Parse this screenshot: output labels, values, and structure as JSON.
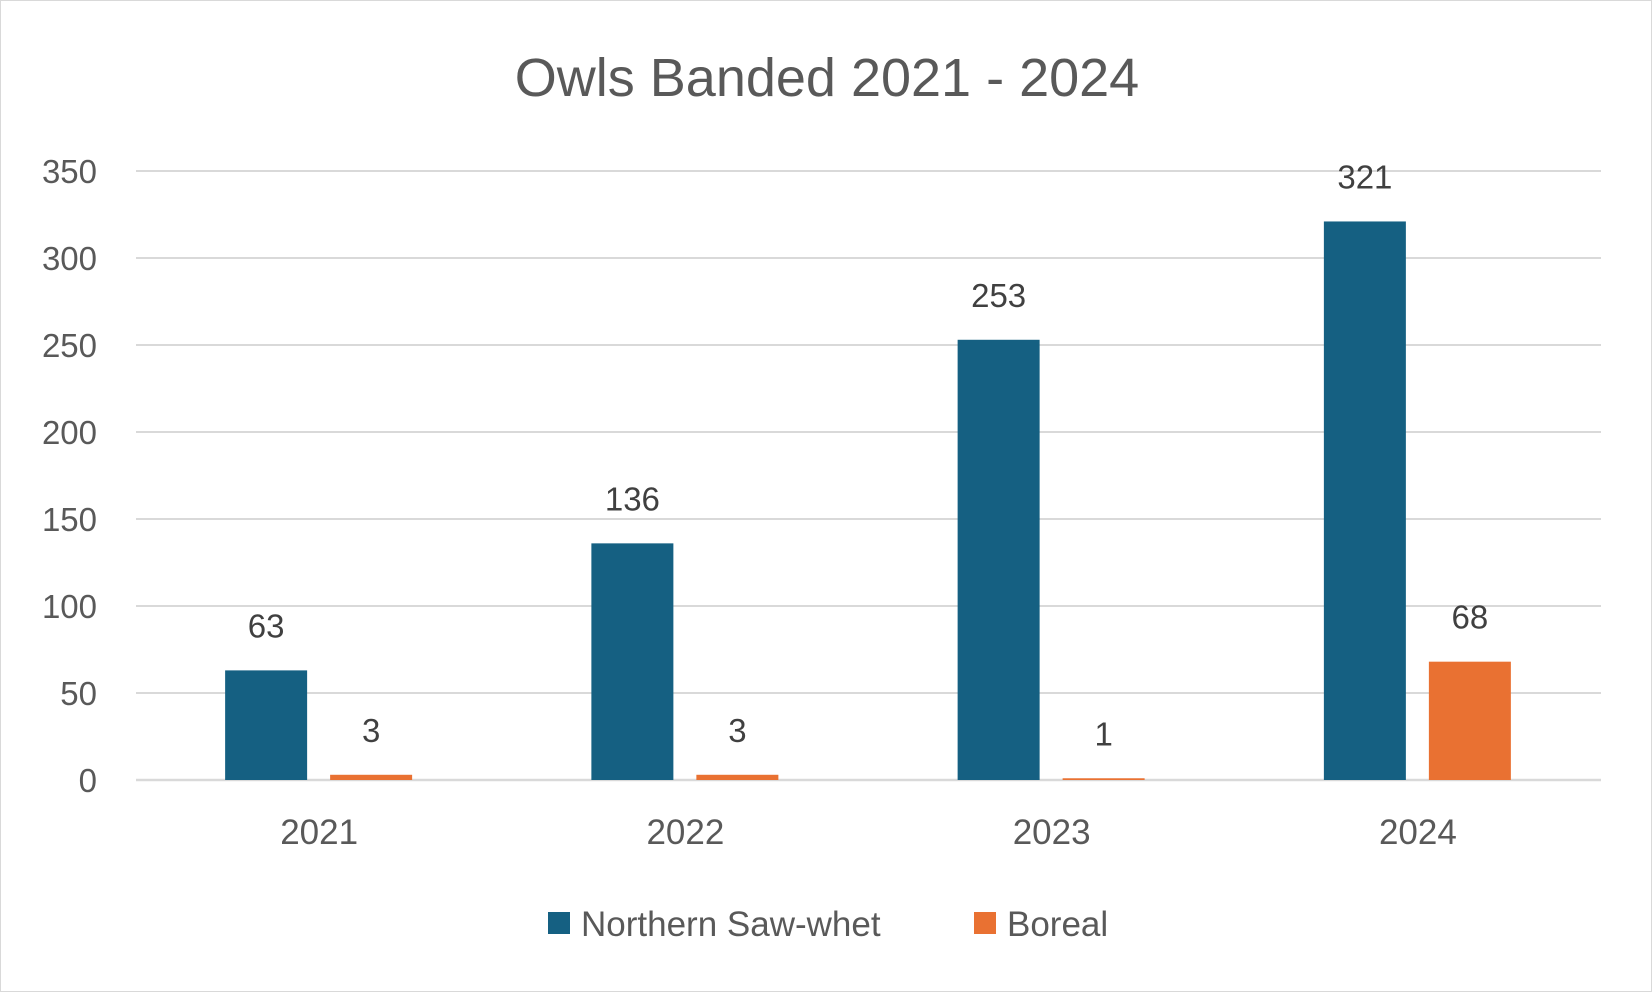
{
  "chart_data": {
    "type": "bar",
    "title": "Owls Banded 2021 - 2024",
    "xlabel": "",
    "ylabel": "",
    "categories": [
      "2021",
      "2022",
      "2023",
      "2024"
    ],
    "ylim": [
      0,
      350
    ],
    "y_ticks": [
      0,
      50,
      100,
      150,
      200,
      250,
      300,
      350
    ],
    "grid": true,
    "legend_position": "bottom",
    "data_labels": true,
    "series": [
      {
        "name": "Northern Saw-whet",
        "color": "#156082",
        "values": [
          63,
          136,
          253,
          321
        ]
      },
      {
        "name": "Boreal",
        "color": "#e97132",
        "values": [
          3,
          3,
          1,
          68
        ]
      }
    ]
  }
}
